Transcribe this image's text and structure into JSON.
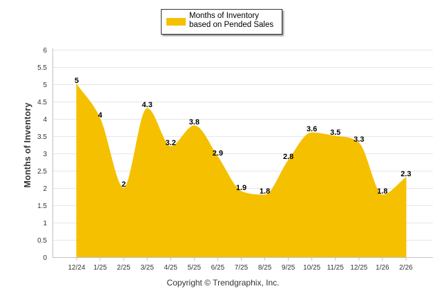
{
  "legend": {
    "label": "Months of Inventory based on Pended Sales",
    "color": "#f5c000"
  },
  "copyright": "Copyright © Trendgraphix, Inc.",
  "chart_data": {
    "type": "area",
    "title": "",
    "xlabel": "",
    "ylabel": "Months of Inventory",
    "ylim": [
      0,
      6
    ],
    "yticks": [
      0,
      0.5,
      1,
      1.5,
      2,
      2.5,
      3,
      3.5,
      4,
      4.5,
      5,
      5.5,
      6
    ],
    "ytick_labels": [
      "0",
      "0.5",
      "1",
      "1.5",
      "2",
      "2.5",
      "3",
      "3.5",
      "4",
      "4.5",
      "5",
      "5.5",
      "6"
    ],
    "grid": true,
    "legend_position": "top-center",
    "categories": [
      "12/24",
      "1/25",
      "2/25",
      "3/25",
      "4/25",
      "5/25",
      "6/25",
      "7/25",
      "8/25",
      "9/25",
      "10/25",
      "11/25",
      "12/25",
      "1/26",
      "2/26"
    ],
    "series": [
      {
        "name": "Months of Inventory based on Pended Sales",
        "values": [
          5,
          4,
          2,
          4.3,
          3.2,
          3.8,
          2.9,
          1.9,
          1.8,
          2.8,
          3.6,
          3.5,
          3.3,
          1.8,
          2.3
        ],
        "labels": [
          "5",
          "4",
          "2",
          "4.3",
          "3.2",
          "3.8",
          "2.9",
          "1.9",
          "1.8",
          "2.8",
          "3.6",
          "3.5",
          "3.3",
          "1.8",
          "2.3"
        ],
        "color": "#f5c000"
      }
    ]
  }
}
